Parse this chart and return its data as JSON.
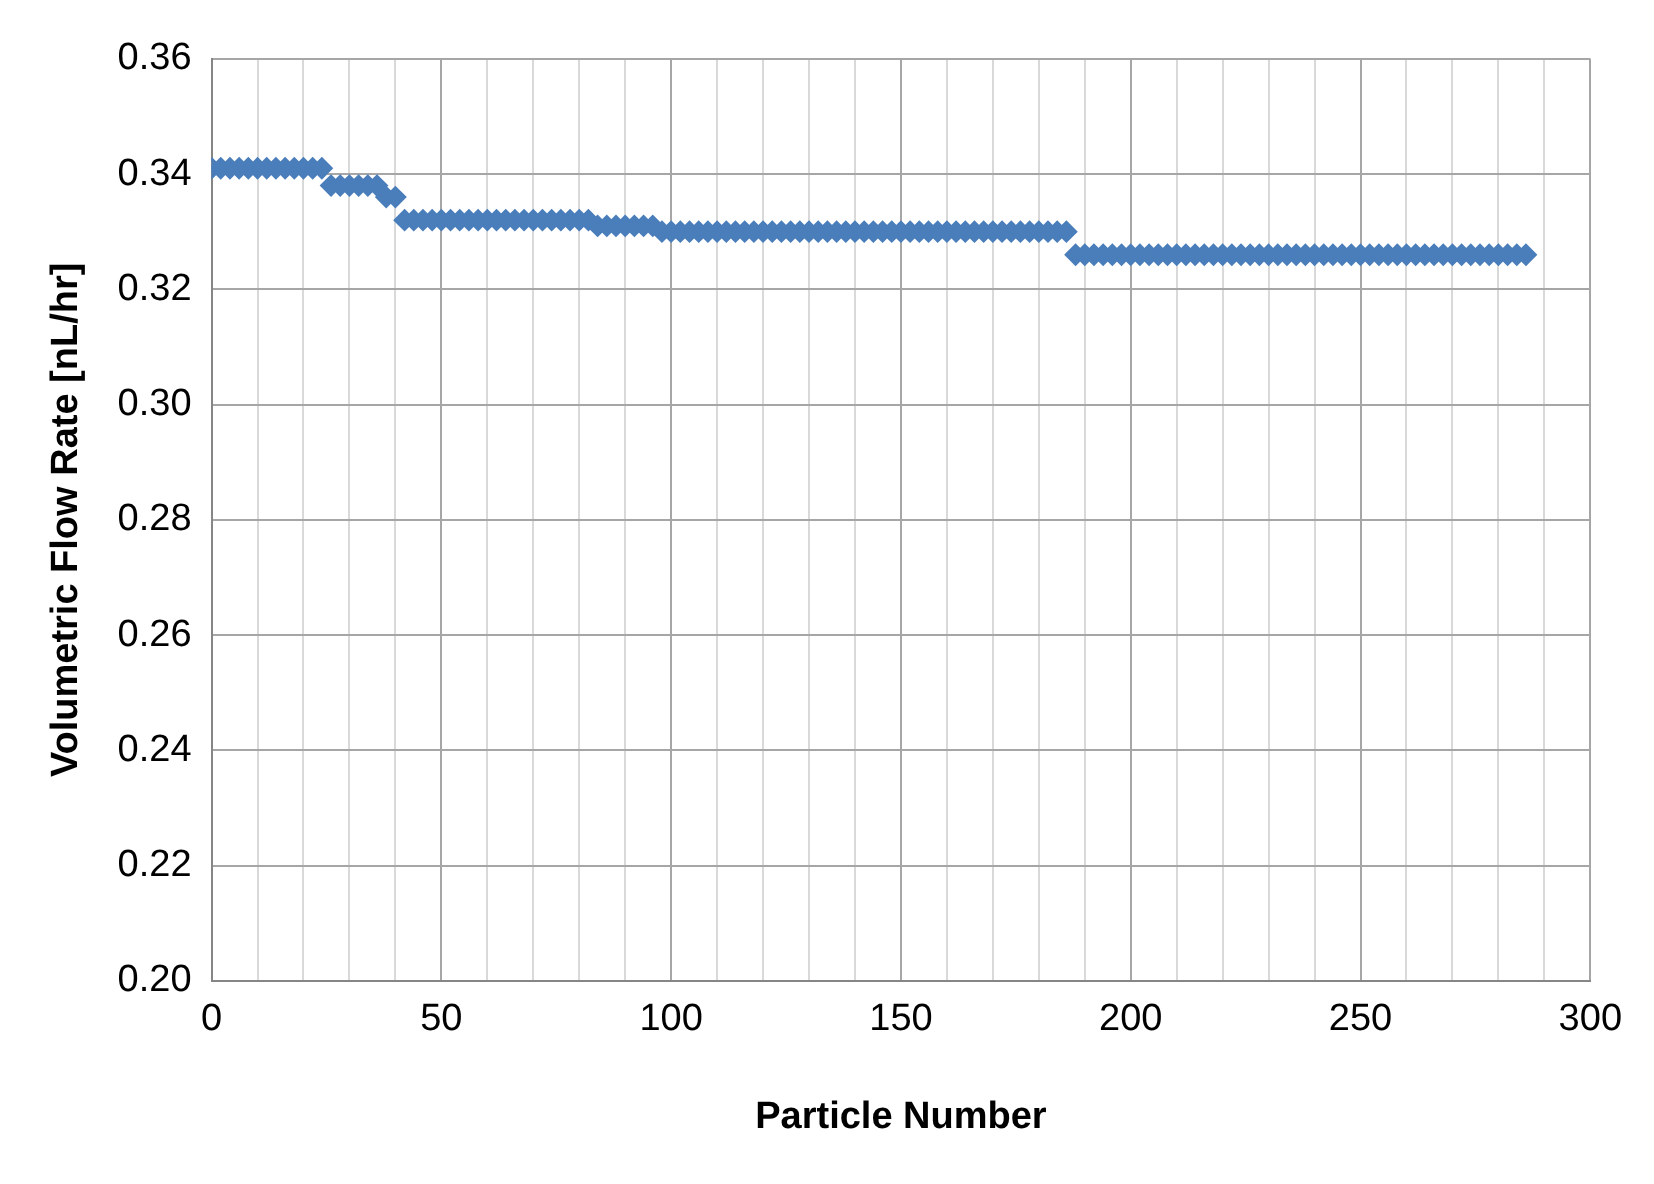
{
  "chart_data": {
    "type": "scatter",
    "xlabel": "Particle Number",
    "ylabel": "Volumetric Flow Rate [nL/hr]",
    "x": [
      0,
      2,
      4,
      6,
      8,
      10,
      12,
      14,
      16,
      18,
      20,
      22,
      24,
      26,
      28,
      30,
      32,
      34,
      36,
      38,
      40,
      42,
      44,
      46,
      48,
      50,
      52,
      54,
      56,
      58,
      60,
      62,
      64,
      66,
      68,
      70,
      72,
      74,
      76,
      78,
      80,
      82,
      84,
      86,
      88,
      90,
      92,
      94,
      96,
      98,
      100,
      102,
      104,
      106,
      108,
      110,
      112,
      114,
      116,
      118,
      120,
      122,
      124,
      126,
      128,
      130,
      132,
      134,
      136,
      138,
      140,
      142,
      144,
      146,
      148,
      150,
      152,
      154,
      156,
      158,
      160,
      162,
      164,
      166,
      168,
      170,
      172,
      174,
      176,
      178,
      180,
      182,
      184,
      186,
      188,
      190,
      192,
      194,
      196,
      198,
      200,
      202,
      204,
      206,
      208,
      210,
      212,
      214,
      216,
      218,
      220,
      222,
      224,
      226,
      228,
      230,
      232,
      234,
      236,
      238,
      240,
      242,
      244,
      246,
      248,
      250,
      252,
      254,
      256,
      258,
      260,
      262,
      264,
      266,
      268,
      270,
      272,
      274,
      276,
      278,
      280,
      282,
      284,
      286
    ],
    "series": [
      {
        "color": "#4a7ebb",
        "values": [
          0.341,
          0.341,
          0.341,
          0.341,
          0.341,
          0.341,
          0.341,
          0.341,
          0.341,
          0.341,
          0.341,
          0.341,
          0.341,
          0.338,
          0.338,
          0.338,
          0.338,
          0.338,
          0.338,
          0.336,
          0.336,
          0.332,
          0.332,
          0.332,
          0.332,
          0.332,
          0.332,
          0.332,
          0.332,
          0.332,
          0.332,
          0.332,
          0.332,
          0.332,
          0.332,
          0.332,
          0.332,
          0.332,
          0.332,
          0.332,
          0.332,
          0.332,
          0.331,
          0.331,
          0.331,
          0.331,
          0.331,
          0.331,
          0.331,
          0.33,
          0.33,
          0.33,
          0.33,
          0.33,
          0.33,
          0.33,
          0.33,
          0.33,
          0.33,
          0.33,
          0.33,
          0.33,
          0.33,
          0.33,
          0.33,
          0.33,
          0.33,
          0.33,
          0.33,
          0.33,
          0.33,
          0.33,
          0.33,
          0.33,
          0.33,
          0.33,
          0.33,
          0.33,
          0.33,
          0.33,
          0.33,
          0.33,
          0.33,
          0.33,
          0.33,
          0.33,
          0.33,
          0.33,
          0.33,
          0.33,
          0.33,
          0.33,
          0.33,
          0.33,
          0.326,
          0.326,
          0.326,
          0.326,
          0.326,
          0.326,
          0.326,
          0.326,
          0.326,
          0.326,
          0.326,
          0.326,
          0.326,
          0.326,
          0.326,
          0.326,
          0.326,
          0.326,
          0.326,
          0.326,
          0.326,
          0.326,
          0.326,
          0.326,
          0.326,
          0.326,
          0.326,
          0.326,
          0.326,
          0.326,
          0.326,
          0.326,
          0.326,
          0.326,
          0.326,
          0.326,
          0.326,
          0.326,
          0.326,
          0.326,
          0.326,
          0.326,
          0.326,
          0.326,
          0.326,
          0.326,
          0.326,
          0.326,
          0.326,
          0.326
        ]
      }
    ],
    "xlim": [
      0,
      300
    ],
    "xticks": [
      0,
      {
        "value": 10,
        "label": null
      },
      {
        "value": 20,
        "label": null
      },
      {
        "value": 30,
        "label": null
      },
      {
        "value": 40,
        "label": null
      },
      50,
      {
        "value": 60,
        "label": null
      },
      {
        "value": 70,
        "label": null
      },
      {
        "value": 80,
        "label": null
      },
      {
        "value": 90,
        "label": null
      },
      100,
      {
        "value": 110,
        "label": null
      },
      {
        "value": 120,
        "label": null
      },
      {
        "value": 130,
        "label": null
      },
      {
        "value": 140,
        "label": null
      },
      150,
      {
        "value": 160,
        "label": null
      },
      {
        "value": 170,
        "label": null
      },
      {
        "value": 180,
        "label": null
      },
      {
        "value": 190,
        "label": null
      },
      200,
      {
        "value": 210,
        "label": null
      },
      {
        "value": 220,
        "label": null
      },
      {
        "value": 230,
        "label": null
      },
      {
        "value": 240,
        "label": null
      },
      250,
      {
        "value": 260,
        "label": null
      },
      {
        "value": 270,
        "label": null
      },
      {
        "value": 280,
        "label": null
      },
      {
        "value": 290,
        "label": null
      },
      300
    ],
    "ylim": [
      0.2,
      0.36
    ],
    "yticks": [
      {
        "value": 0.2,
        "label": "0.20"
      },
      {
        "value": 0.22,
        "label": "0.22"
      },
      {
        "value": 0.24,
        "label": "0.24"
      },
      {
        "value": 0.26,
        "label": "0.26"
      },
      {
        "value": 0.28,
        "label": "0.28"
      },
      {
        "value": 0.3,
        "label": "0.30"
      },
      {
        "value": 0.32,
        "label": "0.32"
      },
      {
        "value": 0.34,
        "label": "0.34"
      },
      {
        "value": 0.36,
        "label": "0.36"
      }
    ],
    "grid": true,
    "marker": "diamond",
    "legend": false
  }
}
